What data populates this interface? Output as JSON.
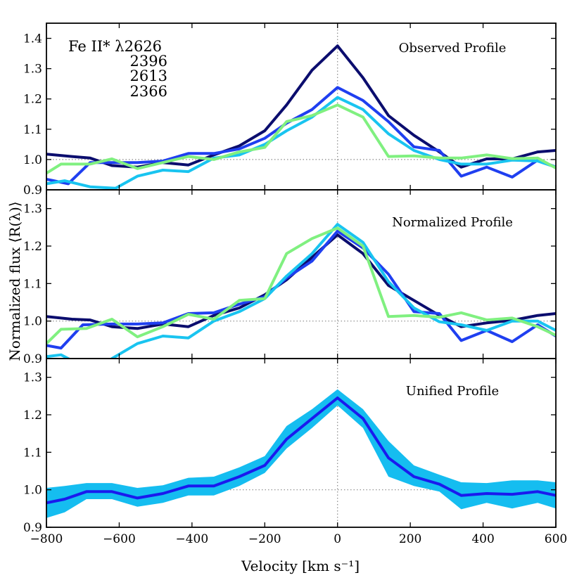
{
  "figure": {
    "xlabel": "Velocity [km s⁻¹]",
    "ylabel": "Normalized flux ⟨R(λ)⟩"
  },
  "legend": {
    "title": "Fe II*  λ2626",
    "entries": [
      {
        "label": "2396",
        "color": "#1f3ff0"
      },
      {
        "label": "2613",
        "color": "#19c4f0"
      },
      {
        "label": "2366",
        "color": "#80f080"
      }
    ],
    "title_color": "#0b0d6e"
  },
  "chart_data": [
    {
      "type": "line",
      "annotation": "Observed Profile",
      "xlim": [
        -800,
        600
      ],
      "ylim": [
        0.9,
        1.45
      ],
      "yticks": [
        0.9,
        1.0,
        1.1,
        1.2,
        1.3,
        1.4
      ],
      "xticks": [
        -800,
        -600,
        -400,
        -200,
        0,
        200,
        400,
        600
      ],
      "reference_lines": {
        "x": 0,
        "y": 1.0
      },
      "series": [
        {
          "name": "λ2626",
          "color": "#0b0d6e",
          "x": [
            -800,
            -730,
            -680,
            -620,
            -550,
            -480,
            -410,
            -340,
            -270,
            -200,
            -140,
            -70,
            0,
            70,
            140,
            210,
            280,
            340,
            410,
            480,
            550,
            600
          ],
          "y": [
            1.018,
            1.01,
            1.005,
            0.98,
            0.975,
            0.99,
            0.982,
            1.015,
            1.045,
            1.095,
            1.18,
            1.295,
            1.375,
            1.27,
            1.145,
            1.08,
            1.025,
            0.975,
            1.002,
            1.002,
            1.025,
            1.03
          ]
        },
        {
          "name": "2396",
          "color": "#1f3ff0",
          "x": [
            -800,
            -740,
            -680,
            -620,
            -550,
            -480,
            -410,
            -340,
            -270,
            -200,
            -140,
            -70,
            0,
            70,
            140,
            210,
            280,
            340,
            410,
            480,
            550,
            600
          ],
          "y": [
            0.935,
            0.92,
            0.99,
            0.99,
            0.99,
            0.995,
            1.02,
            1.02,
            1.035,
            1.07,
            1.12,
            1.165,
            1.238,
            1.195,
            1.125,
            1.042,
            1.03,
            0.945,
            0.975,
            0.942,
            0.998,
            0.975
          ]
        },
        {
          "name": "2613",
          "color": "#19c4f0",
          "x": [
            -800,
            -750,
            -680,
            -610,
            -550,
            -480,
            -410,
            -340,
            -270,
            -200,
            -140,
            -70,
            0,
            70,
            140,
            210,
            280,
            340,
            410,
            480,
            550,
            600
          ],
          "y": [
            0.92,
            0.93,
            0.91,
            0.905,
            0.945,
            0.965,
            0.96,
            1.005,
            1.015,
            1.05,
            1.095,
            1.14,
            1.205,
            1.165,
            1.085,
            1.03,
            1.0,
            0.985,
            0.985,
            0.998,
            0.995,
            0.975
          ]
        },
        {
          "name": "2366",
          "color": "#80f080",
          "x": [
            -800,
            -760,
            -680,
            -620,
            -550,
            -480,
            -410,
            -340,
            -270,
            -200,
            -140,
            -70,
            0,
            70,
            140,
            210,
            280,
            340,
            410,
            480,
            550,
            600
          ],
          "y": [
            0.955,
            0.985,
            0.985,
            1.002,
            0.97,
            0.99,
            1.01,
            1.0,
            1.025,
            1.04,
            1.125,
            1.145,
            1.18,
            1.14,
            1.01,
            1.012,
            1.005,
            1.005,
            1.015,
            1.003,
            1.005,
            0.972
          ]
        }
      ]
    },
    {
      "type": "line",
      "annotation": "Normalized Profile",
      "xlim": [
        -800,
        600
      ],
      "ylim": [
        0.9,
        1.35
      ],
      "yticks": [
        0.9,
        1.0,
        1.1,
        1.2,
        1.3
      ],
      "xticks": [
        -800,
        -600,
        -400,
        -200,
        0,
        200,
        400,
        600
      ],
      "reference_lines": {
        "x": 0,
        "y": 1.0
      },
      "series": [
        {
          "name": "λ2626",
          "color": "#0b0d6e",
          "x": [
            -800,
            -730,
            -680,
            -620,
            -550,
            -480,
            -410,
            -340,
            -270,
            -200,
            -140,
            -70,
            0,
            70,
            140,
            210,
            280,
            340,
            410,
            480,
            550,
            600
          ],
          "y": [
            1.012,
            1.005,
            1.003,
            0.985,
            0.98,
            0.992,
            0.985,
            1.015,
            1.035,
            1.07,
            1.11,
            1.17,
            1.23,
            1.18,
            1.095,
            1.055,
            1.015,
            0.985,
            0.995,
            1.002,
            1.015,
            1.02
          ]
        },
        {
          "name": "2396",
          "color": "#1f3ff0",
          "x": [
            -800,
            -760,
            -700,
            -620,
            -550,
            -480,
            -410,
            -340,
            -270,
            -200,
            -140,
            -70,
            0,
            70,
            140,
            210,
            280,
            340,
            410,
            480,
            550,
            600
          ],
          "y": [
            0.935,
            0.928,
            0.99,
            0.992,
            0.992,
            0.995,
            1.02,
            1.022,
            1.045,
            1.065,
            1.115,
            1.16,
            1.24,
            1.195,
            1.125,
            1.025,
            1.02,
            0.948,
            0.975,
            0.945,
            0.99,
            0.96
          ]
        },
        {
          "name": "2613",
          "color": "#19c4f0",
          "x": [
            -800,
            -760,
            -740,
            -690,
            -630,
            -620,
            -550,
            -480,
            -410,
            -340,
            -270,
            -200,
            -140,
            -70,
            0,
            70,
            140,
            210,
            280,
            340,
            410,
            480,
            550,
            600
          ],
          "y": [
            0.905,
            0.91,
            0.9,
            0.87,
            0.87,
            0.9,
            0.94,
            0.96,
            0.955,
            1.0,
            1.025,
            1.06,
            1.12,
            1.18,
            1.258,
            1.21,
            1.105,
            1.035,
            0.998,
            0.99,
            0.975,
            1.0,
            1.0,
            0.975
          ]
        },
        {
          "name": "2366",
          "color": "#80f080",
          "x": [
            -800,
            -760,
            -690,
            -620,
            -550,
            -480,
            -410,
            -340,
            -270,
            -200,
            -140,
            -70,
            0,
            70,
            140,
            210,
            280,
            340,
            410,
            480,
            550,
            600
          ],
          "y": [
            0.94,
            0.978,
            0.98,
            1.005,
            0.958,
            0.985,
            1.018,
            1.005,
            1.055,
            1.06,
            1.18,
            1.22,
            1.248,
            1.2,
            1.012,
            1.015,
            1.01,
            1.022,
            1.003,
            1.008,
            0.985,
            0.962
          ]
        }
      ]
    },
    {
      "type": "area",
      "annotation": "Unified Profile",
      "xlim": [
        -800,
        600
      ],
      "ylim": [
        0.9,
        1.35
      ],
      "yticks": [
        0.9,
        1.0,
        1.1,
        1.2,
        1.3
      ],
      "xticks": [
        -800,
        -600,
        -400,
        -200,
        0,
        200,
        400,
        600
      ],
      "reference_lines": {
        "x": 0,
        "y": 1.0
      },
      "series": [
        {
          "name": "unified",
          "color": "#1a1aee",
          "band_color": "#15bdf0",
          "x": [
            -800,
            -750,
            -690,
            -620,
            -550,
            -480,
            -410,
            -340,
            -270,
            -200,
            -140,
            -70,
            0,
            70,
            140,
            210,
            280,
            340,
            410,
            480,
            550,
            600
          ],
          "y": [
            0.965,
            0.975,
            0.995,
            0.995,
            0.978,
            0.99,
            1.01,
            1.01,
            1.035,
            1.065,
            1.135,
            1.19,
            1.245,
            1.19,
            1.085,
            1.035,
            1.015,
            0.985,
            0.99,
            0.988,
            0.995,
            0.985
          ],
          "lower": [
            0.925,
            0.94,
            0.975,
            0.975,
            0.955,
            0.965,
            0.985,
            0.985,
            1.01,
            1.045,
            1.11,
            1.165,
            1.225,
            1.165,
            1.035,
            1.01,
            0.995,
            0.948,
            0.965,
            0.95,
            0.965,
            0.95
          ],
          "upper": [
            1.005,
            1.01,
            1.018,
            1.018,
            1.005,
            1.012,
            1.032,
            1.035,
            1.06,
            1.09,
            1.17,
            1.215,
            1.268,
            1.215,
            1.13,
            1.065,
            1.04,
            1.02,
            1.018,
            1.025,
            1.025,
            1.02
          ]
        }
      ]
    }
  ]
}
